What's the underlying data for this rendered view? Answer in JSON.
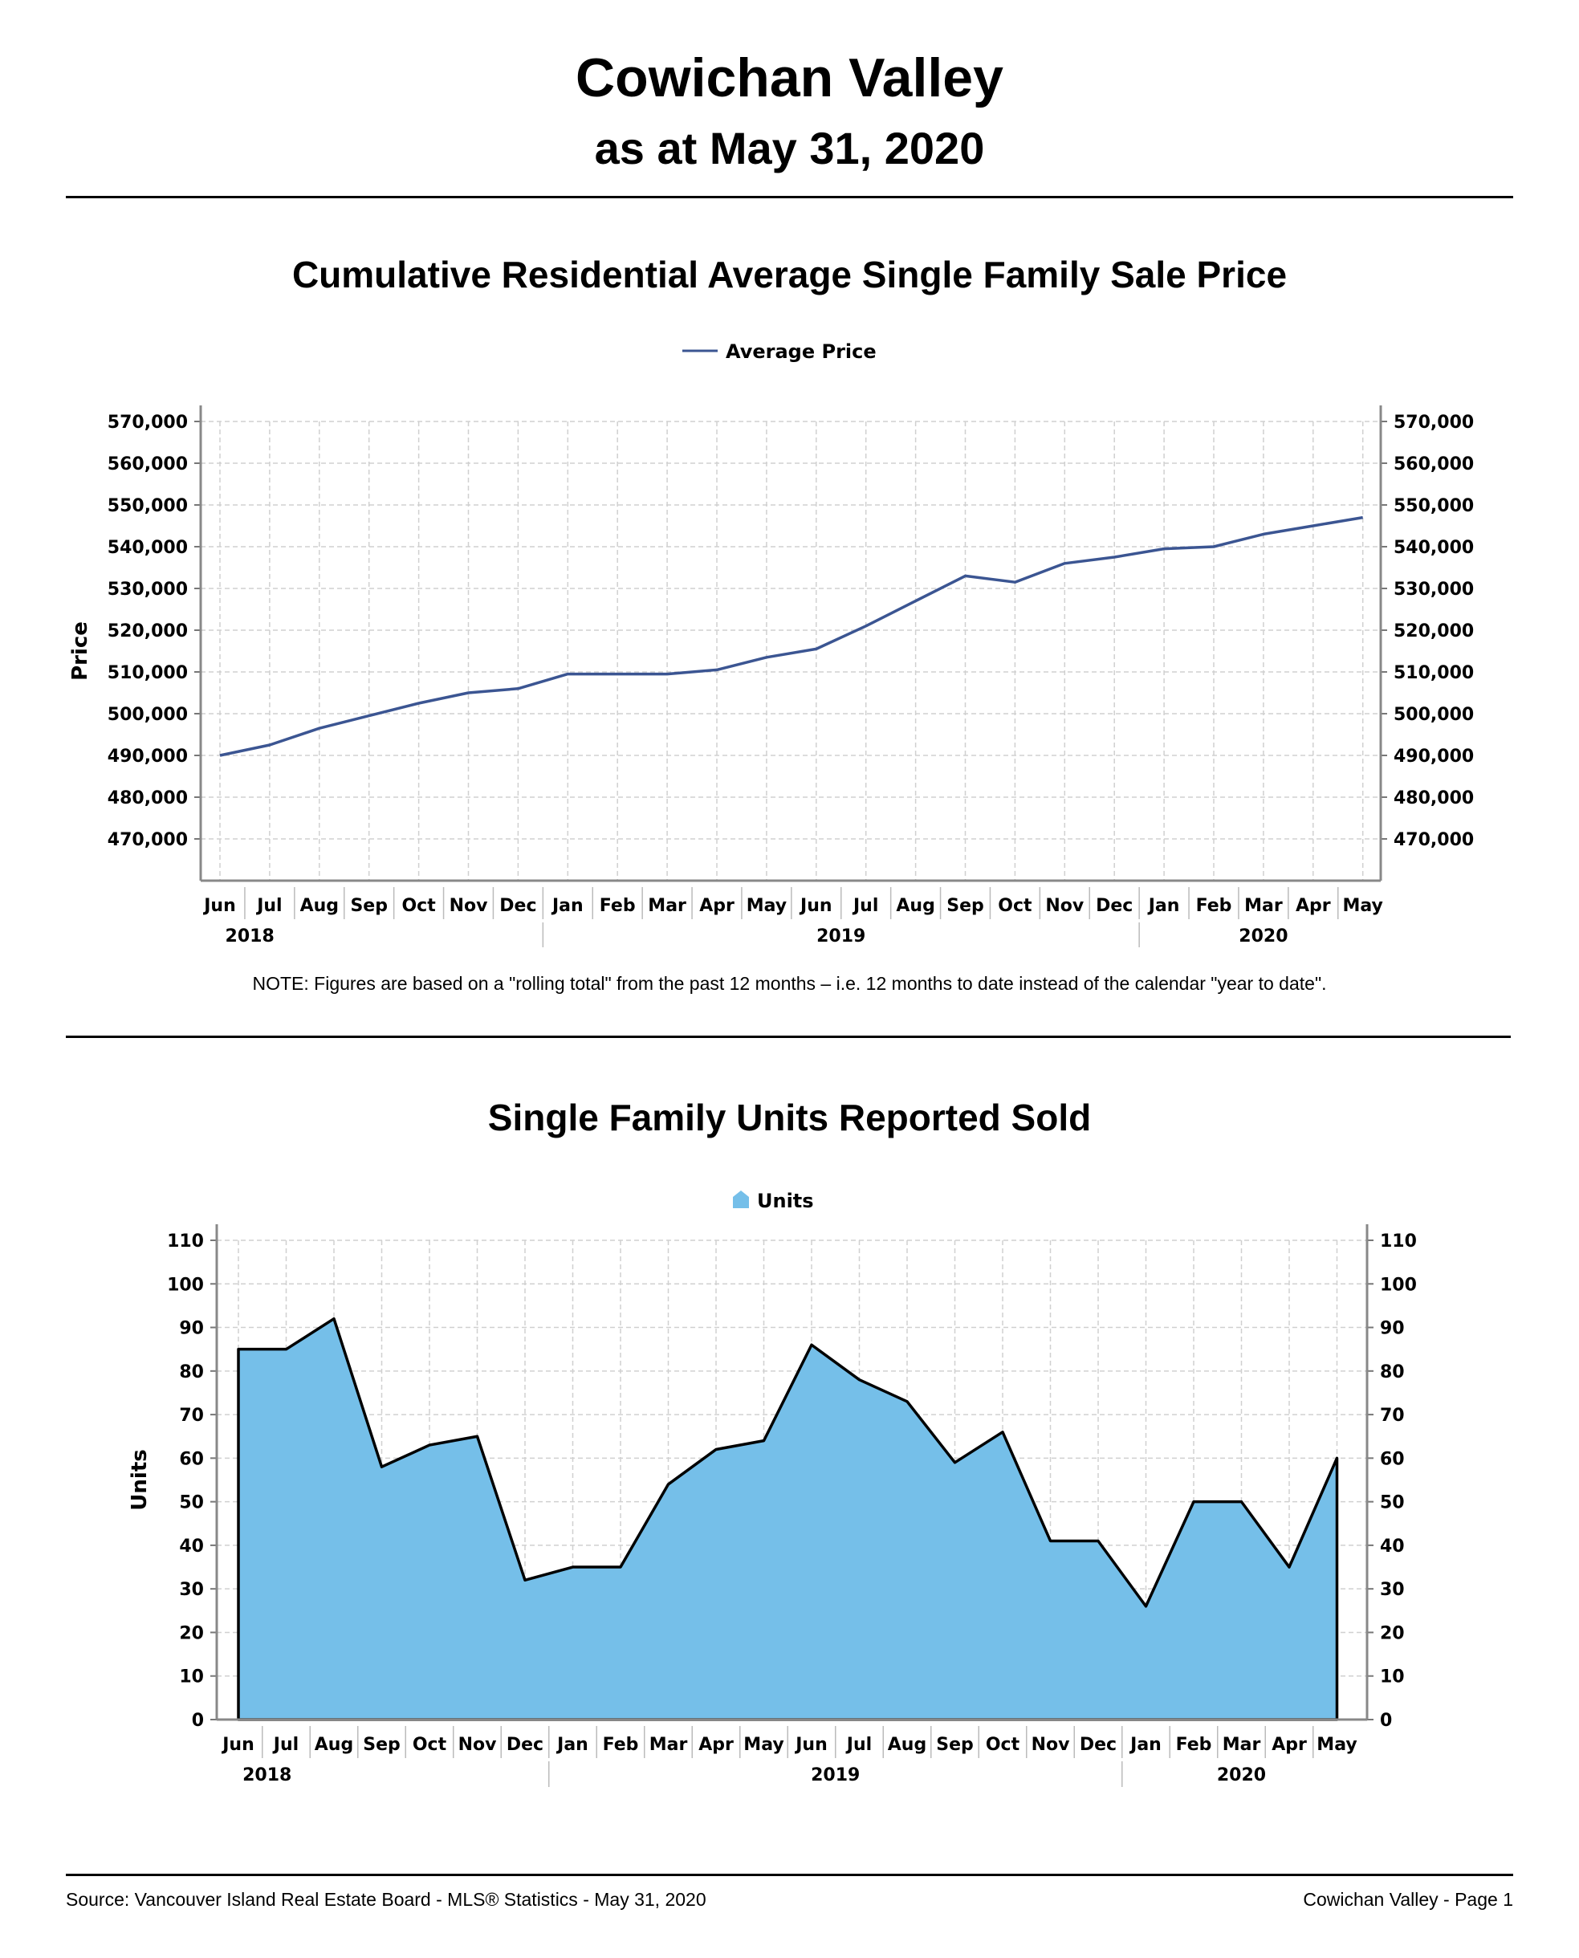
{
  "header": {
    "title": "Cowichan Valley",
    "subtitle": "as at May 31, 2020"
  },
  "months": [
    "Jun",
    "Jul",
    "Aug",
    "Sep",
    "Oct",
    "Nov",
    "Dec",
    "Jan",
    "Feb",
    "Mar",
    "Apr",
    "May",
    "Jun",
    "Jul",
    "Aug",
    "Sep",
    "Oct",
    "Nov",
    "Dec",
    "Jan",
    "Feb",
    "Mar",
    "Apr",
    "May"
  ],
  "years": [
    "2018",
    "2019",
    "2020"
  ],
  "note": "NOTE:  Figures are based on a \"rolling total\" from the past 12 months – i.e. 12 months to date instead of the calendar \"year to date\".",
  "footer": {
    "source": "Source: Vancouver Island Real Estate Board - MLS® Statistics - May 31, 2020",
    "page": "Cowichan Valley - Page 1"
  },
  "colors": {
    "price_line": "#3b5592",
    "units_fill": "#75bfe9",
    "units_stroke": "#000000"
  },
  "chart_data": [
    {
      "type": "line",
      "title": "Cumulative Residential Average Single Family Sale Price",
      "ylabel": "Price",
      "ylim": [
        460000,
        570000
      ],
      "yticks": [
        470000,
        480000,
        490000,
        500000,
        510000,
        520000,
        530000,
        540000,
        550000,
        560000,
        570000
      ],
      "ytick_labels": [
        "470,000",
        "480,000",
        "490,000",
        "500,000",
        "510,000",
        "520,000",
        "530,000",
        "540,000",
        "550,000",
        "560,000",
        "570,000"
      ],
      "legend": "top-center",
      "grid": true,
      "series": [
        {
          "name": "Average Price",
          "values": [
            490000,
            492500,
            496500,
            499500,
            502500,
            505000,
            506000,
            509500,
            509500,
            509500,
            510500,
            513500,
            515500,
            521000,
            527000,
            533000,
            531500,
            536000,
            537500,
            539500,
            540000,
            543000,
            545000,
            547000
          ]
        }
      ]
    },
    {
      "type": "area",
      "title": "Single Family Units Reported Sold",
      "ylabel": "Units",
      "ylim": [
        0,
        110
      ],
      "yticks": [
        0,
        10,
        20,
        30,
        40,
        50,
        60,
        70,
        80,
        90,
        100,
        110
      ],
      "legend": "top-center",
      "grid": true,
      "series": [
        {
          "name": "Units",
          "values": [
            85,
            85,
            92,
            58,
            63,
            65,
            32,
            35,
            35,
            54,
            62,
            64,
            86,
            78,
            73,
            59,
            66,
            41,
            41,
            26,
            50,
            50,
            35,
            60
          ]
        }
      ]
    }
  ]
}
